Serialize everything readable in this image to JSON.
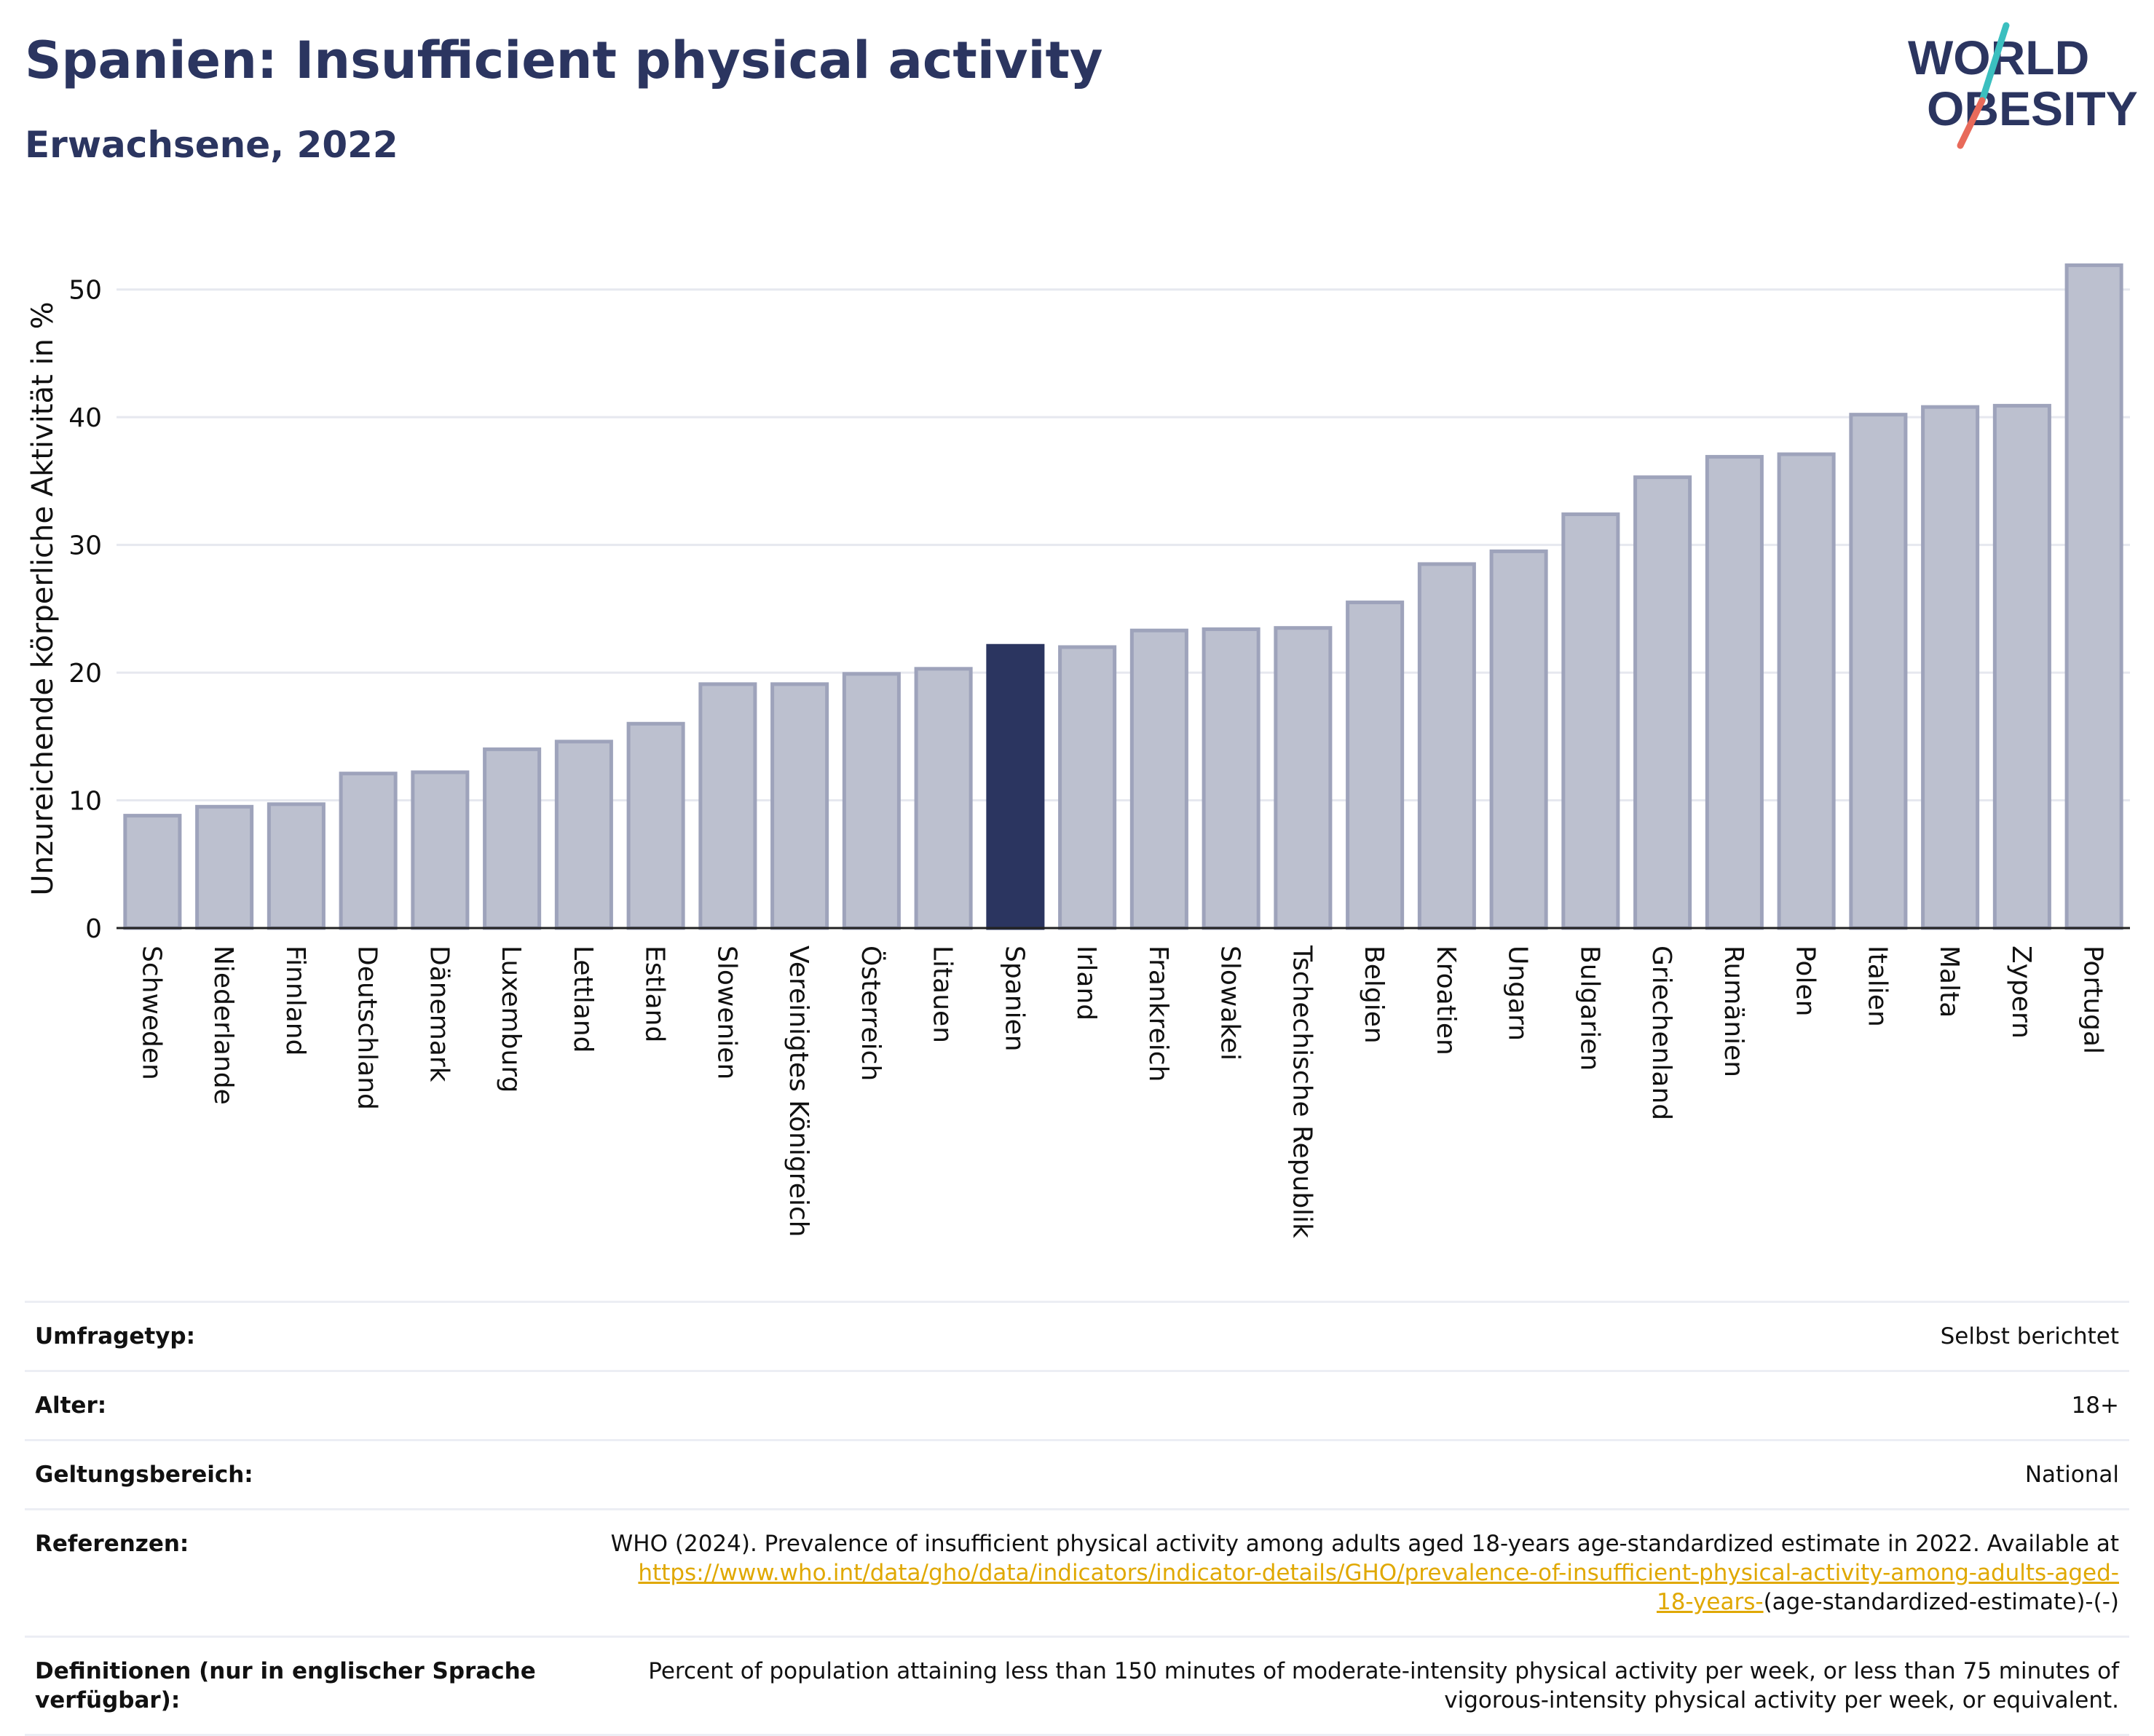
{
  "header": {
    "title": "Spanien: Insufficient physical activity",
    "subtitle": "Erwachsene, 2022"
  },
  "logo": {
    "line1": "WORLD",
    "line2": "OBESITY",
    "colors": {
      "text": "#2b3560",
      "slash_top": "#3bbfbf",
      "slash_bottom": "#e86a5a"
    }
  },
  "colors": {
    "bar": "#bcc0cf",
    "bar_stroke": "#9ea3bb",
    "highlight": "#2b3560",
    "grid": "#e6e8ef",
    "axis": "#222222"
  },
  "chart_data": {
    "type": "bar",
    "categories": [
      "Schweden",
      "Niederlande",
      "Finnland",
      "Deutschland",
      "Dänemark",
      "Luxemburg",
      "Lettland",
      "Estland",
      "Slowenien",
      "Vereinigtes Königreich",
      "Österreich",
      "Litauen",
      "Spanien",
      "Irland",
      "Frankreich",
      "Slowakei",
      "Tschechische Republik",
      "Belgien",
      "Kroatien",
      "Ungarn",
      "Bulgarien",
      "Griechenland",
      "Rumänien",
      "Polen",
      "Italien",
      "Malta",
      "Zypern",
      "Portugal"
    ],
    "values": [
      8.8,
      9.5,
      9.7,
      12.1,
      12.2,
      14.0,
      14.6,
      16.0,
      19.1,
      19.1,
      19.9,
      20.3,
      22.1,
      22.0,
      23.3,
      23.4,
      23.5,
      25.5,
      28.5,
      29.5,
      32.4,
      35.3,
      36.9,
      37.1,
      40.2,
      40.8,
      40.9,
      51.9
    ],
    "highlight": "Spanien",
    "ylabel": "Unzureichende körperliche Aktivität in %",
    "ylim": [
      0,
      55
    ],
    "yticks": [
      0,
      10,
      20,
      30,
      40,
      50
    ],
    "grid": true
  },
  "info": {
    "rows": [
      {
        "label": "Umfragetyp:",
        "value": "Selbst berichtet"
      },
      {
        "label": "Alter:",
        "value": "18+"
      },
      {
        "label": "Geltungsbereich:",
        "value": "National"
      }
    ],
    "references": {
      "label": "Referenzen:",
      "text": "WHO (2024). Prevalence of insufficient physical activity among adults aged 18-years age-standardized estimate in 2022. Available at",
      "link_line1": "https://www.who.int/data/gho/data/indicators/indicator-details/GHO/prevalence-of-insufficient-physical-activity-among-adults-aged-",
      "link_line2": "18-years-",
      "suffix": "(age-standardized-estimate)-(-)"
    },
    "definitions": {
      "label_line1": "Definitionen (nur in englischer Sprache",
      "label_line2": "verfügbar):",
      "text_line1": "Percent of population attaining less than 150 minutes of moderate-intensity physical activity per week, or less than 75 minutes of",
      "text_line2": "vigorous-intensity physical activity per week, or equivalent."
    }
  }
}
